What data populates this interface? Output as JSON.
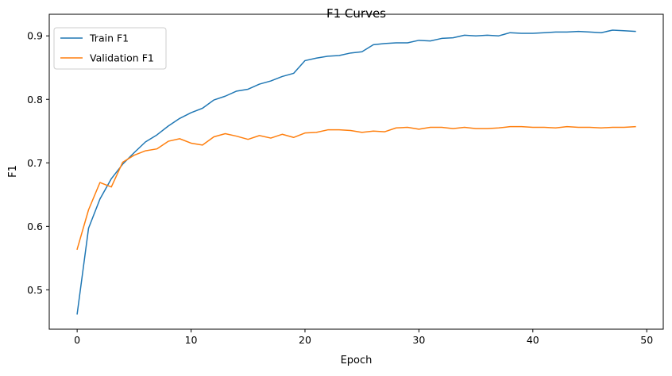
{
  "chart_data": {
    "type": "line",
    "title": "F1 Curves",
    "xlabel": "Epoch",
    "ylabel": "F1",
    "xlim": [
      -2.45,
      51.45
    ],
    "ylim": [
      0.438,
      0.934
    ],
    "xticks": [
      0,
      10,
      20,
      30,
      40,
      50
    ],
    "yticks": [
      0.5,
      0.6,
      0.7,
      0.8,
      0.9
    ],
    "xtick_labels": [
      "0",
      "10",
      "20",
      "30",
      "40",
      "50"
    ],
    "ytick_labels": [
      "0.5",
      "0.6",
      "0.7",
      "0.8",
      "0.9"
    ],
    "grid": false,
    "legend_position": "top-left",
    "x": [
      0,
      1,
      2,
      3,
      4,
      5,
      6,
      7,
      8,
      9,
      10,
      11,
      12,
      13,
      14,
      15,
      16,
      17,
      18,
      19,
      20,
      21,
      22,
      23,
      24,
      25,
      26,
      27,
      28,
      29,
      30,
      31,
      32,
      33,
      34,
      35,
      36,
      37,
      38,
      39,
      40,
      41,
      42,
      43,
      44,
      45,
      46,
      47,
      48,
      49
    ],
    "series": [
      {
        "name": "Train F1",
        "color": "#1f77b4",
        "values": [
          0.462,
          0.597,
          0.643,
          0.675,
          0.698,
          0.716,
          0.733,
          0.744,
          0.758,
          0.77,
          0.779,
          0.786,
          0.799,
          0.805,
          0.813,
          0.816,
          0.824,
          0.829,
          0.836,
          0.841,
          0.861,
          0.865,
          0.868,
          0.869,
          0.873,
          0.875,
          0.886,
          0.888,
          0.889,
          0.889,
          0.893,
          0.892,
          0.896,
          0.897,
          0.901,
          0.9,
          0.901,
          0.9,
          0.905,
          0.904,
          0.904,
          0.905,
          0.906,
          0.906,
          0.907,
          0.906,
          0.905,
          0.909,
          0.908,
          0.907
        ]
      },
      {
        "name": "Validation F1",
        "color": "#ff7f0e",
        "values": [
          0.564,
          0.626,
          0.669,
          0.662,
          0.701,
          0.712,
          0.719,
          0.722,
          0.734,
          0.738,
          0.731,
          0.728,
          0.741,
          0.746,
          0.742,
          0.737,
          0.743,
          0.739,
          0.745,
          0.74,
          0.747,
          0.748,
          0.752,
          0.752,
          0.751,
          0.748,
          0.75,
          0.749,
          0.755,
          0.756,
          0.753,
          0.756,
          0.756,
          0.754,
          0.756,
          0.754,
          0.754,
          0.755,
          0.757,
          0.757,
          0.756,
          0.756,
          0.755,
          0.757,
          0.756,
          0.756,
          0.755,
          0.756,
          0.756,
          0.757
        ]
      }
    ]
  }
}
